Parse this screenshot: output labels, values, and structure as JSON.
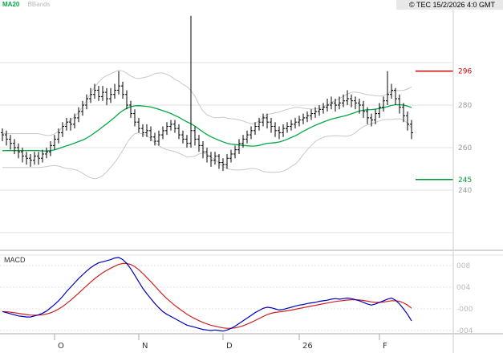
{
  "header": {
    "ma20_label": "MA20",
    "bbands_label": "BBands",
    "copyright": "© TEC 15/2/2026 4:0 GMT"
  },
  "macd_panel_label": "MACD",
  "colors": {
    "ma20": "#00aa44",
    "bbands": "#c8c8c8",
    "bars": "#000000",
    "macd_line": "#0000bb",
    "signal_line": "#cc2222",
    "grid": "#e0e0e0",
    "axis_text": "#999999",
    "macd_axis_text": "#bbbbbb",
    "month_text": "#333333",
    "separator": "#aaaaaa",
    "resistance": "#cc0000",
    "support": "#009933"
  },
  "chart_data": {
    "type": "candlestick",
    "title": "Daily OHLC with MA20, Bollinger Bands and MACD",
    "price_axis": {
      "ticks": [
        {
          "value": 280,
          "label": "280"
        },
        {
          "value": 260,
          "label": "260"
        },
        {
          "value": 240,
          "label": "240"
        }
      ],
      "gridlines": [
        220,
        240,
        260,
        280,
        300
      ],
      "range": [
        212,
        330
      ]
    },
    "levels": [
      {
        "name": "resistance",
        "value": 296,
        "label": "296",
        "color": "#cc0000"
      },
      {
        "name": "support",
        "value": 245,
        "label": "245",
        "color": "#009933"
      }
    ],
    "x_axis": {
      "labels": [
        {
          "label": "O",
          "index": 13
        },
        {
          "label": "N",
          "index": 34
        },
        {
          "label": "D",
          "index": 55
        },
        {
          "label": "26",
          "index": 74
        },
        {
          "label": "F",
          "index": 94
        }
      ]
    },
    "indicators": {
      "ma_period": 20,
      "bb_period": 20,
      "bb_mult": 2,
      "macd_signal_smoothing": 0.2
    },
    "bars": [
      [
        267,
        269,
        263,
        266
      ],
      [
        266,
        268,
        261,
        264
      ],
      [
        264,
        266,
        259,
        262
      ],
      [
        262,
        264,
        257,
        260
      ],
      [
        260,
        262,
        255,
        258
      ],
      [
        258,
        260,
        253,
        256
      ],
      [
        256,
        258,
        252,
        255
      ],
      [
        255,
        257,
        251,
        254
      ],
      [
        254,
        258,
        252,
        256
      ],
      [
        256,
        258,
        252,
        255
      ],
      [
        255,
        259,
        253,
        257
      ],
      [
        257,
        260,
        255,
        258
      ],
      [
        258,
        263,
        256,
        261
      ],
      [
        261,
        266,
        259,
        264
      ],
      [
        264,
        269,
        262,
        267
      ],
      [
        267,
        272,
        265,
        270
      ],
      [
        270,
        274,
        268,
        272
      ],
      [
        272,
        274,
        268,
        271
      ],
      [
        271,
        276,
        269,
        274
      ],
      [
        274,
        279,
        272,
        277
      ],
      [
        277,
        282,
        275,
        280
      ],
      [
        280,
        285,
        278,
        283
      ],
      [
        283,
        288,
        281,
        285
      ],
      [
        285,
        290,
        283,
        287
      ],
      [
        287,
        289,
        282,
        284
      ],
      [
        284,
        289,
        282,
        286
      ],
      [
        286,
        288,
        280,
        283
      ],
      [
        283,
        288,
        281,
        285
      ],
      [
        285,
        290,
        283,
        287
      ],
      [
        287,
        296,
        285,
        289
      ],
      [
        289,
        291,
        283,
        285
      ],
      [
        285,
        287,
        278,
        280
      ],
      [
        280,
        282,
        274,
        276
      ],
      [
        276,
        278,
        270,
        272
      ],
      [
        272,
        274,
        267,
        269
      ],
      [
        269,
        271,
        265,
        267
      ],
      [
        267,
        271,
        265,
        268
      ],
      [
        268,
        270,
        263,
        265
      ],
      [
        265,
        267,
        261,
        263
      ],
      [
        263,
        268,
        261,
        266
      ],
      [
        266,
        270,
        264,
        268
      ],
      [
        268,
        272,
        266,
        270
      ],
      [
        270,
        273,
        268,
        271
      ],
      [
        271,
        273,
        267,
        269
      ],
      [
        269,
        271,
        264,
        266
      ],
      [
        266,
        268,
        262,
        264
      ],
      [
        264,
        266,
        260,
        262
      ],
      [
        262,
        322,
        260,
        268
      ],
      [
        268,
        270,
        261,
        264
      ],
      [
        264,
        266,
        258,
        261
      ],
      [
        261,
        263,
        255,
        258
      ],
      [
        258,
        260,
        253,
        256
      ],
      [
        256,
        258,
        251,
        254
      ],
      [
        254,
        258,
        252,
        256
      ],
      [
        256,
        257,
        250,
        253
      ],
      [
        253,
        255,
        249,
        252
      ],
      [
        252,
        257,
        250,
        255
      ],
      [
        255,
        259,
        253,
        257
      ],
      [
        257,
        261,
        255,
        259
      ],
      [
        259,
        264,
        257,
        262
      ],
      [
        262,
        266,
        260,
        264
      ],
      [
        264,
        268,
        262,
        266
      ],
      [
        266,
        270,
        264,
        268
      ],
      [
        268,
        272,
        266,
        270
      ],
      [
        270,
        274,
        268,
        272
      ],
      [
        272,
        276,
        270,
        274
      ],
      [
        274,
        276,
        269,
        272
      ],
      [
        272,
        274,
        267,
        270
      ],
      [
        270,
        272,
        265,
        268
      ],
      [
        268,
        270,
        264,
        267
      ],
      [
        267,
        271,
        265,
        269
      ],
      [
        269,
        272,
        267,
        270
      ],
      [
        270,
        273,
        268,
        271
      ],
      [
        271,
        274,
        269,
        272
      ],
      [
        272,
        275,
        270,
        273
      ],
      [
        273,
        276,
        271,
        274
      ],
      [
        274,
        277,
        272,
        275
      ],
      [
        275,
        278,
        273,
        276
      ],
      [
        276,
        279,
        274,
        277
      ],
      [
        277,
        280,
        275,
        278
      ],
      [
        278,
        281,
        276,
        279
      ],
      [
        279,
        283,
        277,
        280
      ],
      [
        280,
        284,
        278,
        281
      ],
      [
        281,
        283,
        277,
        280
      ],
      [
        280,
        284,
        278,
        281
      ],
      [
        281,
        285,
        279,
        282
      ],
      [
        282,
        287,
        280,
        283
      ],
      [
        283,
        285,
        279,
        282
      ],
      [
        282,
        284,
        278,
        281
      ],
      [
        281,
        283,
        276,
        280
      ],
      [
        280,
        282,
        274,
        277
      ],
      [
        277,
        279,
        271,
        274
      ],
      [
        274,
        276,
        270,
        273
      ],
      [
        273,
        278,
        271,
        276
      ],
      [
        276,
        281,
        274,
        279
      ],
      [
        279,
        284,
        277,
        282
      ],
      [
        282,
        296,
        280,
        285
      ],
      [
        285,
        290,
        283,
        287
      ],
      [
        287,
        288,
        280,
        283
      ],
      [
        283,
        285,
        276,
        279
      ],
      [
        279,
        281,
        272,
        275
      ],
      [
        275,
        277,
        268,
        271
      ],
      [
        271,
        273,
        264,
        267
      ]
    ],
    "macd": {
      "unit": "1e-3",
      "axis_ticks": [
        {
          "value": 8,
          "label": "008"
        },
        {
          "value": 4,
          "label": "004"
        },
        {
          "value": 0,
          "label": "-000"
        },
        {
          "value": -4,
          "label": "-004"
        }
      ],
      "values": [
        -0.5,
        -0.7,
        -0.9,
        -1.1,
        -1.3,
        -1.4,
        -1.5,
        -1.5,
        -1.3,
        -1.1,
        -0.8,
        -0.4,
        0.2,
        0.8,
        1.5,
        2.3,
        3.2,
        4.0,
        4.8,
        5.6,
        6.3,
        7.0,
        7.6,
        8.1,
        8.5,
        8.7,
        8.9,
        9.1,
        9.4,
        9.5,
        9.1,
        8.4,
        7.4,
        6.2,
        5.0,
        3.8,
        2.8,
        1.9,
        1.0,
        0.2,
        -0.5,
        -1.0,
        -1.4,
        -1.8,
        -2.2,
        -2.6,
        -3.0,
        -3.2,
        -3.4,
        -3.6,
        -3.8,
        -3.9,
        -4.0,
        -3.9,
        -4.0,
        -4.1,
        -3.9,
        -3.6,
        -3.2,
        -2.7,
        -2.2,
        -1.7,
        -1.2,
        -0.7,
        -0.3,
        0.1,
        0.3,
        0.2,
        0.0,
        -0.2,
        -0.1,
        0.1,
        0.3,
        0.5,
        0.7,
        0.8,
        1.0,
        1.1,
        1.2,
        1.4,
        1.5,
        1.6,
        1.8,
        1.9,
        1.8,
        1.9,
        2.0,
        1.9,
        1.7,
        1.5,
        1.2,
        0.9,
        0.7,
        0.9,
        1.2,
        1.5,
        1.8,
        2.0,
        1.6,
        0.9,
        0.0,
        -1.0,
        -2.2
      ]
    }
  }
}
